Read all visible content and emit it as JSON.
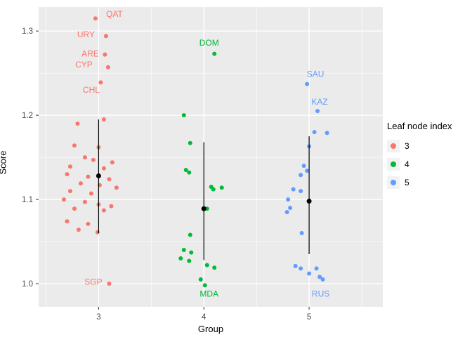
{
  "figure": {
    "background": "#FFFFFF",
    "panel_background": "#EBEBEB",
    "grid_color": "#FFFFFF",
    "tick_text_color": "#4D4D4D"
  },
  "chart_data": {
    "type": "scatter",
    "title": "",
    "xlabel": "Group",
    "ylabel": "Score",
    "xlim": [
      2.43,
      5.7
    ],
    "ylim": [
      0.9725,
      1.3285
    ],
    "x_ticks": [
      3,
      4,
      5
    ],
    "y_ticks": [
      1.0,
      1.1,
      1.2,
      1.3
    ],
    "x_minor": [
      2.5,
      3.5,
      4.5,
      5.5
    ],
    "y_minor": [
      1.05,
      1.15,
      1.25
    ],
    "grid": true,
    "legend": {
      "title": "Leaf node index",
      "position": "right",
      "entries": [
        {
          "label": "3",
          "color": "#F8766D"
        },
        {
          "label": "4",
          "color": "#00BA38"
        },
        {
          "label": "5",
          "color": "#619CFF"
        }
      ]
    },
    "series": [
      {
        "name": "3",
        "color": "#F8766D",
        "points": [
          [
            2.97,
            1.315
          ],
          [
            3.07,
            1.294
          ],
          [
            3.06,
            1.272
          ],
          [
            3.09,
            1.257
          ],
          [
            3.02,
            1.239
          ],
          [
            3.05,
            1.195
          ],
          [
            2.8,
            1.19
          ],
          [
            2.77,
            1.164
          ],
          [
            3.0,
            1.162
          ],
          [
            2.87,
            1.15
          ],
          [
            2.95,
            1.147
          ],
          [
            3.13,
            1.144
          ],
          [
            2.73,
            1.139
          ],
          [
            3.05,
            1.137
          ],
          [
            2.7,
            1.13
          ],
          [
            2.9,
            1.127
          ],
          [
            3.1,
            1.124
          ],
          [
            2.83,
            1.119
          ],
          [
            3.01,
            1.117
          ],
          [
            3.17,
            1.114
          ],
          [
            2.73,
            1.11
          ],
          [
            2.93,
            1.107
          ],
          [
            2.67,
            1.1
          ],
          [
            2.87,
            1.097
          ],
          [
            3.0,
            1.094
          ],
          [
            3.12,
            1.092
          ],
          [
            2.77,
            1.089
          ],
          [
            3.05,
            1.087
          ],
          [
            2.7,
            1.074
          ],
          [
            2.9,
            1.071
          ],
          [
            2.81,
            1.064
          ],
          [
            2.99,
            1.061
          ],
          [
            3.1,
            1.0
          ]
        ]
      },
      {
        "name": "4",
        "color": "#00BA38",
        "points": [
          [
            4.1,
            1.273
          ],
          [
            3.81,
            1.2
          ],
          [
            3.87,
            1.167
          ],
          [
            3.83,
            1.135
          ],
          [
            3.86,
            1.132
          ],
          [
            4.07,
            1.115
          ],
          [
            4.17,
            1.114
          ],
          [
            4.09,
            1.112
          ],
          [
            4.03,
            1.089
          ],
          [
            3.87,
            1.058
          ],
          [
            3.81,
            1.04
          ],
          [
            3.88,
            1.037
          ],
          [
            3.78,
            1.03
          ],
          [
            3.86,
            1.027
          ],
          [
            4.03,
            1.022
          ],
          [
            4.1,
            1.019
          ],
          [
            3.97,
            1.005
          ],
          [
            4.01,
            0.998
          ]
        ]
      },
      {
        "name": "5",
        "color": "#619CFF",
        "points": [
          [
            4.98,
            1.237
          ],
          [
            5.08,
            1.205
          ],
          [
            5.05,
            1.18
          ],
          [
            5.17,
            1.179
          ],
          [
            5.0,
            1.163
          ],
          [
            4.95,
            1.14
          ],
          [
            4.98,
            1.134
          ],
          [
            4.92,
            1.129
          ],
          [
            4.85,
            1.112
          ],
          [
            4.92,
            1.11
          ],
          [
            4.8,
            1.1
          ],
          [
            4.82,
            1.09
          ],
          [
            4.79,
            1.085
          ],
          [
            4.93,
            1.06
          ],
          [
            4.87,
            1.021
          ],
          [
            4.92,
            1.018
          ],
          [
            5.07,
            1.018
          ],
          [
            5.0,
            1.012
          ],
          [
            5.1,
            1.008
          ],
          [
            5.13,
            1.005
          ]
        ]
      }
    ],
    "summary": [
      {
        "group": 3,
        "x": 3.0,
        "mean": 1.128,
        "lo": 1.06,
        "hi": 1.195
      },
      {
        "group": 4,
        "x": 4.0,
        "mean": 1.089,
        "lo": 1.028,
        "hi": 1.168
      },
      {
        "group": 5,
        "x": 5.0,
        "mean": 1.098,
        "lo": 1.035,
        "hi": 1.175
      }
    ],
    "point_labels": [
      {
        "text": "QAT",
        "x": 3.15,
        "y": 1.32,
        "color": "#F8766D"
      },
      {
        "text": "URY",
        "x": 2.88,
        "y": 1.296,
        "color": "#F8766D"
      },
      {
        "text": "ARE",
        "x": 2.92,
        "y": 1.273,
        "color": "#F8766D"
      },
      {
        "text": "CYP",
        "x": 2.86,
        "y": 1.26,
        "color": "#F8766D"
      },
      {
        "text": "CHL",
        "x": 2.93,
        "y": 1.23,
        "color": "#F8766D"
      },
      {
        "text": "SGP",
        "x": 2.95,
        "y": 1.002,
        "color": "#F8766D"
      },
      {
        "text": "DOM",
        "x": 4.05,
        "y": 1.286,
        "color": "#00BA38"
      },
      {
        "text": "MDA",
        "x": 4.05,
        "y": 0.988,
        "color": "#00BA38"
      },
      {
        "text": "SAU",
        "x": 5.06,
        "y": 1.249,
        "color": "#619CFF"
      },
      {
        "text": "KAZ",
        "x": 5.1,
        "y": 1.216,
        "color": "#619CFF"
      },
      {
        "text": "RUS",
        "x": 5.11,
        "y": 0.988,
        "color": "#619CFF"
      }
    ]
  }
}
